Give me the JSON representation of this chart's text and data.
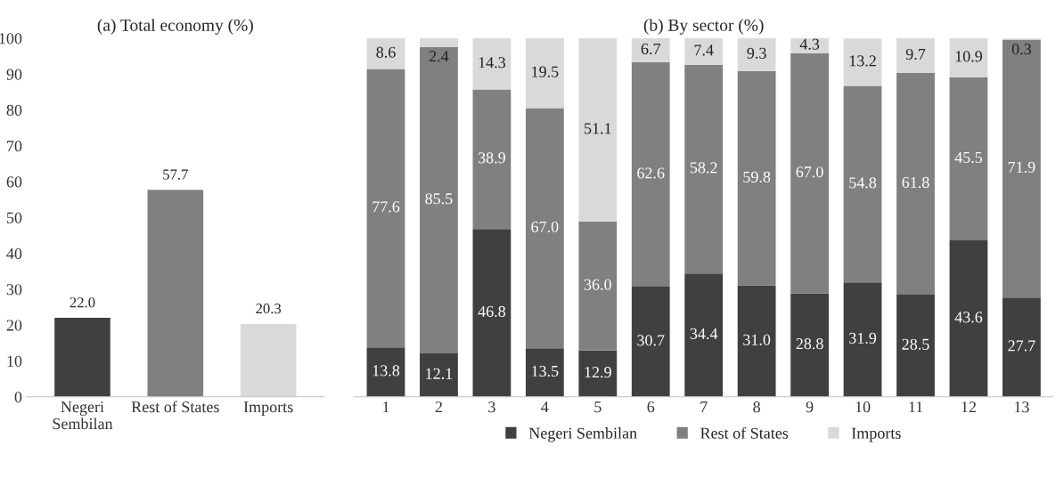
{
  "chart_data": [
    {
      "type": "bar",
      "title": "(a) Total economy (%)",
      "categories": [
        "Negeri\nSembilan",
        "Rest of States",
        "Imports"
      ],
      "values": [
        22.0,
        57.7,
        20.3
      ],
      "value_labels": [
        "22.0",
        "57.7",
        "20.3"
      ],
      "colors": [
        "#404040",
        "#808080",
        "#d9d9d9"
      ],
      "ylim": [
        0,
        100
      ],
      "yticks": [
        0,
        10,
        20,
        30,
        40,
        50,
        60,
        70,
        80,
        90,
        100
      ],
      "grid": false,
      "legend": false
    },
    {
      "type": "bar",
      "title": "(b) By sector (%)",
      "categories": [
        "1",
        "2",
        "3",
        "4",
        "5",
        "6",
        "7",
        "8",
        "9",
        "10",
        "11",
        "12",
        "13"
      ],
      "stacked": true,
      "ylim": [
        0,
        100
      ],
      "tick_labels": "x",
      "grid": false,
      "legend": "bottom",
      "series": [
        {
          "name": "Negeri Sembilan",
          "color": "#404040",
          "values": [
            13.8,
            12.1,
            46.8,
            13.5,
            12.9,
            30.7,
            34.4,
            31.0,
            28.8,
            31.9,
            28.5,
            43.6,
            27.7
          ],
          "value_labels": [
            "13.8",
            "12.1",
            "46.8",
            "13.5",
            "12.9",
            "30.7",
            "34.4",
            "31.0",
            "28.8",
            "31.9",
            "28.5",
            "43.6",
            "27.7"
          ]
        },
        {
          "name": "Rest of States",
          "color": "#808080",
          "values": [
            77.6,
            85.5,
            38.9,
            67.0,
            36.0,
            62.6,
            58.2,
            59.8,
            67.0,
            54.8,
            61.8,
            45.5,
            71.9
          ],
          "value_labels": [
            "77.6",
            "85.5",
            "38.9",
            "67.0",
            "36.0",
            "62.6",
            "58.2",
            "59.8",
            "67.0",
            "54.8",
            "61.8",
            "45.5",
            "71.9"
          ]
        },
        {
          "name": "Imports",
          "color": "#d9d9d9",
          "values": [
            8.6,
            2.4,
            14.3,
            19.5,
            51.1,
            6.7,
            7.4,
            9.3,
            4.3,
            13.2,
            9.7,
            10.9,
            0.3
          ],
          "value_labels": [
            "8.6",
            "2.4",
            "14.3",
            "19.5",
            "51.1",
            "6.7",
            "7.4",
            "9.3",
            "4.3",
            "13.2",
            "9.7",
            "10.9",
            "0.3"
          ]
        }
      ]
    }
  ]
}
